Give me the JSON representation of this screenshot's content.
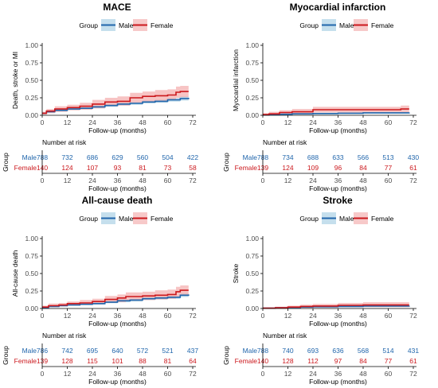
{
  "colors": {
    "male": "#2166ac",
    "male_band": "#9ecae1",
    "female": "#cb181d",
    "female_band": "#f2a5a5",
    "axis": "#000000",
    "tick_text": "#4d4d4d"
  },
  "legend_title": "Group",
  "group_names": [
    "Male",
    "Female"
  ],
  "risk_table_title": "Number at risk",
  "risk_table_ylabel": "Group",
  "chart_data": [
    {
      "type": "line",
      "title": "MACE",
      "xlabel": "Follow-up (months)",
      "ylabel": "Death, stroke or MI",
      "xlim": [
        0,
        72
      ],
      "ylim": [
        0,
        1
      ],
      "x_ticks": [
        0,
        12,
        24,
        36,
        48,
        60,
        72
      ],
      "y_ticks": [
        "0.00",
        "0.25",
        "0.50",
        "0.75",
        "1.00"
      ],
      "grid": false,
      "legend": "top",
      "series": [
        {
          "name": "Male",
          "x": [
            0,
            2,
            6,
            12,
            18,
            24,
            30,
            36,
            42,
            48,
            54,
            60,
            66,
            70
          ],
          "y": [
            0.03,
            0.05,
            0.07,
            0.09,
            0.1,
            0.12,
            0.14,
            0.16,
            0.17,
            0.19,
            0.2,
            0.22,
            0.24,
            0.25
          ],
          "lower": [
            0.02,
            0.04,
            0.06,
            0.075,
            0.085,
            0.1,
            0.12,
            0.14,
            0.15,
            0.17,
            0.18,
            0.195,
            0.21,
            0.22
          ],
          "upper": [
            0.04,
            0.06,
            0.085,
            0.105,
            0.115,
            0.14,
            0.16,
            0.18,
            0.19,
            0.21,
            0.225,
            0.245,
            0.27,
            0.28
          ]
        },
        {
          "name": "Female",
          "x": [
            0,
            2,
            6,
            12,
            18,
            24,
            30,
            36,
            42,
            48,
            54,
            60,
            64,
            66,
            70
          ],
          "y": [
            0.03,
            0.06,
            0.09,
            0.11,
            0.13,
            0.16,
            0.19,
            0.2,
            0.25,
            0.27,
            0.28,
            0.29,
            0.33,
            0.34,
            0.34
          ],
          "lower": [
            0.01,
            0.03,
            0.05,
            0.07,
            0.08,
            0.1,
            0.13,
            0.14,
            0.18,
            0.2,
            0.21,
            0.22,
            0.25,
            0.26,
            0.26
          ],
          "upper": [
            0.05,
            0.09,
            0.13,
            0.15,
            0.18,
            0.22,
            0.25,
            0.27,
            0.32,
            0.34,
            0.36,
            0.37,
            0.41,
            0.42,
            0.42
          ]
        }
      ],
      "risk_table": {
        "Male": [
          788,
          732,
          686,
          629,
          560,
          504,
          422
        ],
        "Female": [
          140,
          124,
          107,
          93,
          81,
          73,
          58
        ]
      }
    },
    {
      "type": "line",
      "title": "Myocardial infarction",
      "xlabel": "Follow-up (months)",
      "ylabel": "Myocardial infarction",
      "xlim": [
        0,
        72
      ],
      "ylim": [
        0,
        1
      ],
      "x_ticks": [
        0,
        12,
        24,
        36,
        48,
        60,
        72
      ],
      "y_ticks": [
        "0.00",
        "0.25",
        "0.50",
        "0.75",
        "1.00"
      ],
      "grid": false,
      "legend": "top",
      "series": [
        {
          "name": "Male",
          "x": [
            0,
            3,
            8,
            14,
            24,
            36,
            48,
            60,
            70
          ],
          "y": [
            0.005,
            0.01,
            0.015,
            0.02,
            0.025,
            0.03,
            0.035,
            0.035,
            0.04
          ],
          "lower": [
            0.0,
            0.005,
            0.008,
            0.012,
            0.015,
            0.02,
            0.024,
            0.024,
            0.028
          ],
          "upper": [
            0.01,
            0.016,
            0.022,
            0.028,
            0.035,
            0.04,
            0.046,
            0.046,
            0.052
          ]
        },
        {
          "name": "Female",
          "x": [
            0,
            3,
            8,
            14,
            24,
            36,
            48,
            60,
            66,
            70
          ],
          "y": [
            0.01,
            0.02,
            0.04,
            0.05,
            0.08,
            0.08,
            0.08,
            0.08,
            0.09,
            0.09
          ],
          "lower": [
            0.0,
            0.0,
            0.01,
            0.02,
            0.04,
            0.04,
            0.04,
            0.04,
            0.04,
            0.04
          ],
          "upper": [
            0.03,
            0.05,
            0.07,
            0.09,
            0.12,
            0.12,
            0.12,
            0.12,
            0.14,
            0.14
          ]
        }
      ],
      "risk_table": {
        "Male": [
          788,
          734,
          688,
          633,
          566,
          513,
          430
        ],
        "Female": [
          139,
          124,
          109,
          96,
          84,
          77,
          61
        ]
      }
    },
    {
      "type": "line",
      "title": "All-cause death",
      "xlabel": "Follow-up (months)",
      "ylabel": "All-cause death",
      "xlim": [
        0,
        72
      ],
      "ylim": [
        0,
        1
      ],
      "x_ticks": [
        0,
        12,
        24,
        36,
        48,
        60,
        72
      ],
      "y_ticks": [
        "0.00",
        "0.25",
        "0.50",
        "0.75",
        "1.00"
      ],
      "grid": false,
      "legend": "top",
      "series": [
        {
          "name": "Male",
          "x": [
            0,
            3,
            8,
            12,
            18,
            24,
            30,
            36,
            42,
            48,
            54,
            60,
            66,
            70
          ],
          "y": [
            0.01,
            0.03,
            0.04,
            0.05,
            0.06,
            0.07,
            0.09,
            0.11,
            0.12,
            0.14,
            0.15,
            0.16,
            0.19,
            0.2
          ],
          "lower": [
            0.0,
            0.02,
            0.03,
            0.04,
            0.05,
            0.055,
            0.075,
            0.09,
            0.1,
            0.12,
            0.13,
            0.14,
            0.165,
            0.175
          ],
          "upper": [
            0.02,
            0.04,
            0.05,
            0.06,
            0.07,
            0.085,
            0.105,
            0.13,
            0.14,
            0.16,
            0.17,
            0.18,
            0.215,
            0.225
          ]
        },
        {
          "name": "Female",
          "x": [
            0,
            3,
            8,
            12,
            18,
            24,
            30,
            36,
            40,
            48,
            54,
            60,
            64,
            66,
            70
          ],
          "y": [
            0.02,
            0.04,
            0.05,
            0.07,
            0.08,
            0.1,
            0.13,
            0.15,
            0.17,
            0.18,
            0.19,
            0.2,
            0.24,
            0.26,
            0.26
          ],
          "lower": [
            0.0,
            0.02,
            0.03,
            0.04,
            0.05,
            0.06,
            0.08,
            0.09,
            0.11,
            0.12,
            0.13,
            0.14,
            0.17,
            0.19,
            0.19
          ],
          "upper": [
            0.04,
            0.07,
            0.08,
            0.1,
            0.12,
            0.14,
            0.18,
            0.2,
            0.23,
            0.24,
            0.26,
            0.27,
            0.31,
            0.33,
            0.33
          ]
        }
      ],
      "risk_table": {
        "Male": [
          786,
          742,
          695,
          640,
          572,
          521,
          437
        ],
        "Female": [
          139,
          128,
          115,
          101,
          88,
          81,
          64
        ]
      }
    },
    {
      "type": "line",
      "title": "Stroke",
      "xlabel": "Follow-up (months)",
      "ylabel": "Stroke",
      "xlim": [
        0,
        72
      ],
      "ylim": [
        0,
        1
      ],
      "x_ticks": [
        0,
        12,
        24,
        36,
        48,
        60,
        72
      ],
      "y_ticks": [
        "0.00",
        "0.25",
        "0.50",
        "0.75",
        "1.00"
      ],
      "grid": false,
      "legend": "top",
      "series": [
        {
          "name": "Male",
          "x": [
            0,
            6,
            12,
            18,
            24,
            36,
            48,
            60,
            70
          ],
          "y": [
            0.005,
            0.01,
            0.015,
            0.02,
            0.025,
            0.03,
            0.035,
            0.035,
            0.04
          ],
          "lower": [
            0.0,
            0.005,
            0.008,
            0.012,
            0.016,
            0.02,
            0.024,
            0.024,
            0.028
          ],
          "upper": [
            0.01,
            0.015,
            0.022,
            0.028,
            0.034,
            0.04,
            0.046,
            0.046,
            0.052
          ]
        },
        {
          "name": "Female",
          "x": [
            0,
            6,
            12,
            18,
            24,
            36,
            48,
            60,
            70
          ],
          "y": [
            0.005,
            0.01,
            0.02,
            0.03,
            0.035,
            0.045,
            0.05,
            0.05,
            0.05
          ],
          "lower": [
            0.0,
            0.0,
            0.005,
            0.01,
            0.012,
            0.018,
            0.02,
            0.02,
            0.02
          ],
          "upper": [
            0.015,
            0.025,
            0.04,
            0.055,
            0.065,
            0.08,
            0.09,
            0.09,
            0.09
          ]
        }
      ],
      "risk_table": {
        "Male": [
          788,
          740,
          693,
          636,
          568,
          514,
          431
        ],
        "Female": [
          140,
          128,
          112,
          97,
          84,
          77,
          61
        ]
      }
    }
  ]
}
